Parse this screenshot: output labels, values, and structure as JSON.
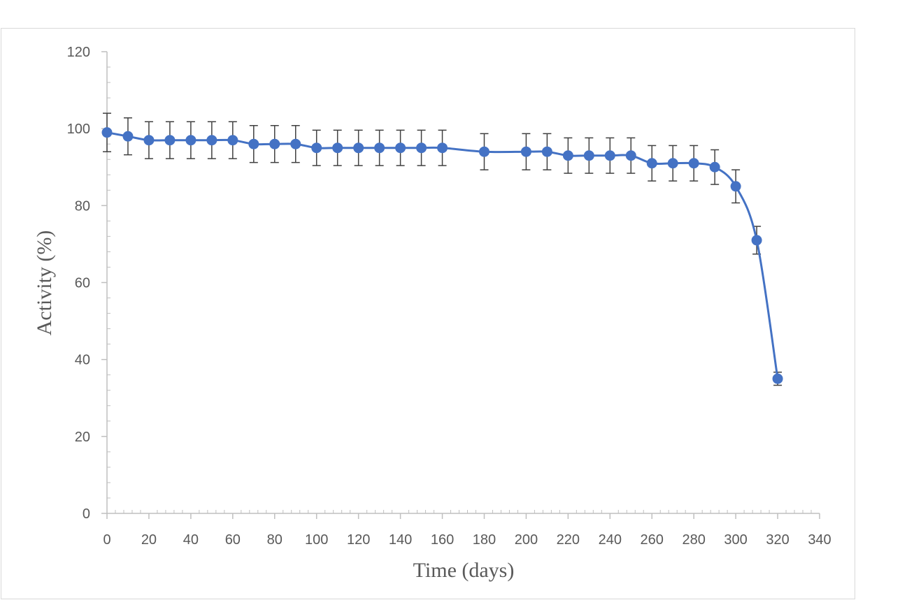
{
  "chart_data": {
    "type": "line",
    "title": "",
    "xlabel": "Time (days)",
    "ylabel": "Activity (%)",
    "xlim": [
      0,
      340
    ],
    "ylim": [
      0,
      120
    ],
    "x_ticks": [
      0,
      20,
      40,
      60,
      80,
      100,
      120,
      140,
      160,
      180,
      200,
      220,
      240,
      260,
      280,
      300,
      320,
      340
    ],
    "y_ticks": [
      0,
      20,
      40,
      60,
      80,
      100,
      120
    ],
    "x_tick_labels": [
      "0",
      "20",
      "40",
      "60",
      "80",
      "100",
      "120",
      "140",
      "160",
      "180",
      "200",
      "220",
      "240",
      "260",
      "280",
      "300",
      "320",
      "340"
    ],
    "y_tick_labels": [
      "0",
      "20",
      "40",
      "60",
      "80",
      "100",
      "120"
    ],
    "grid": false,
    "legend": "none",
    "series": [
      {
        "color": "#4472c4",
        "x": [
          0,
          10,
          20,
          30,
          40,
          50,
          60,
          70,
          80,
          90,
          100,
          110,
          120,
          130,
          140,
          150,
          160,
          180,
          200,
          210,
          220,
          230,
          240,
          250,
          260,
          270,
          280,
          290,
          300,
          310,
          320
        ],
        "y": [
          99,
          98,
          97,
          97,
          97,
          97,
          97,
          96,
          96,
          96,
          95,
          95,
          95,
          95,
          95,
          95,
          95,
          94,
          94,
          94,
          93,
          93,
          93,
          93,
          91,
          91,
          91,
          90,
          85,
          71,
          35
        ],
        "error": [
          5,
          4.8,
          4.8,
          4.8,
          4.8,
          4.8,
          4.8,
          4.8,
          4.8,
          4.8,
          4.6,
          4.6,
          4.6,
          4.6,
          4.6,
          4.6,
          4.6,
          4.7,
          4.7,
          4.7,
          4.6,
          4.6,
          4.6,
          4.6,
          4.6,
          4.6,
          4.6,
          4.5,
          4.3,
          3.6,
          1.7
        ]
      }
    ],
    "error_bar_color": "#404040"
  }
}
